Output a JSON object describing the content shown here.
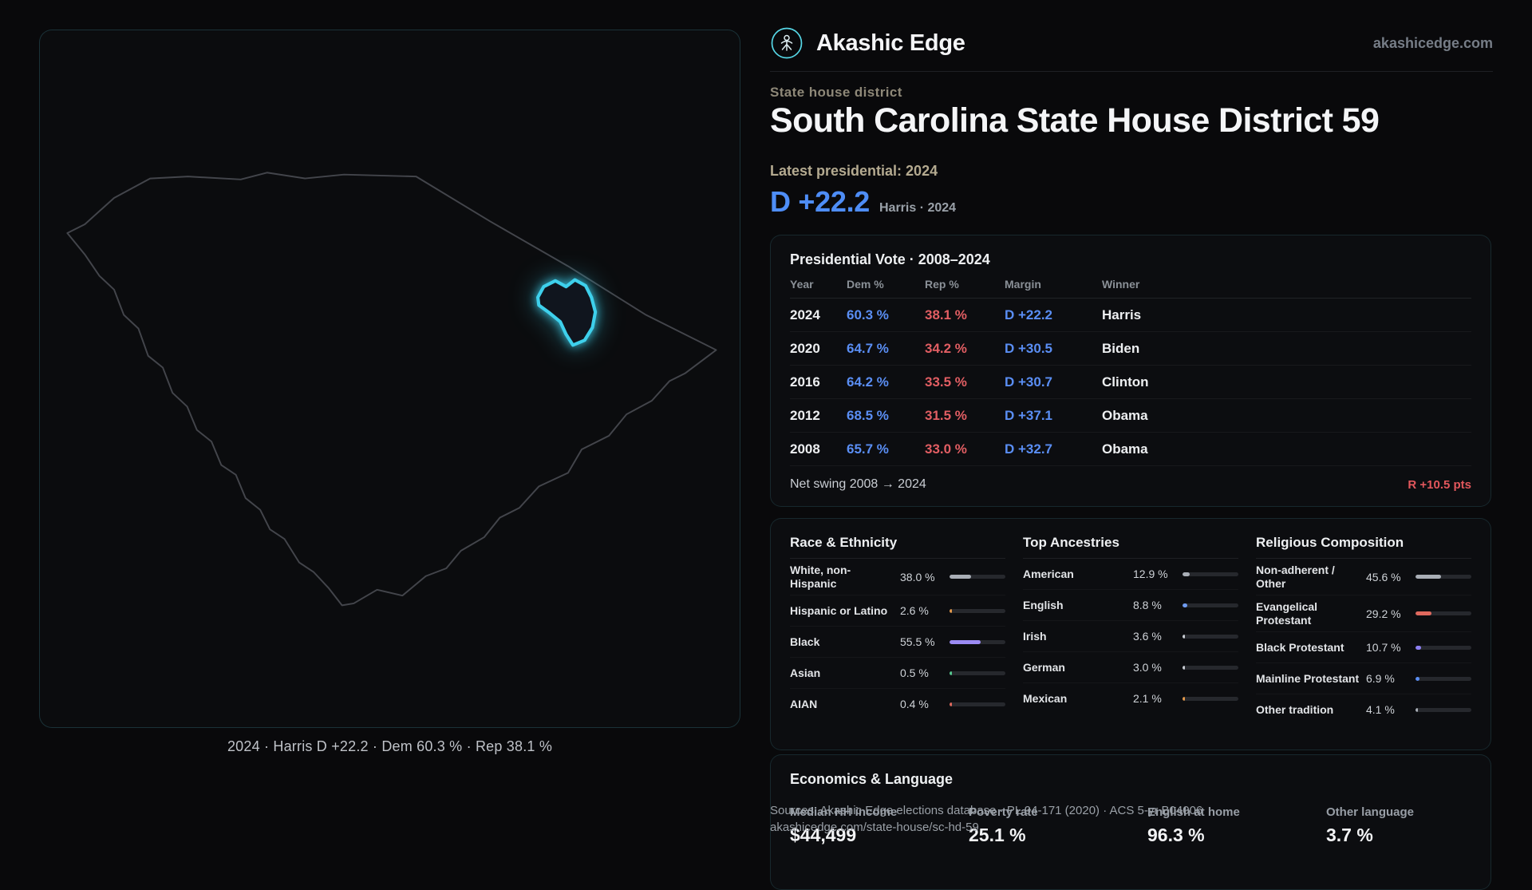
{
  "brand": {
    "name": "Akashic Edge",
    "domain": "akashicedge.com"
  },
  "page": {
    "kicker": "State house district",
    "title": "South Carolina State House District 59",
    "latest_label": "Latest presidential: 2024",
    "headline_margin": "D +22.2",
    "headline_sub": "Harris · 2024",
    "map_caption": "2024 · Harris D +22.2 · Dem 60.3 % · Rep 38.1 %"
  },
  "colors": {
    "dem": "#5a8ef4",
    "rep": "#e2575c",
    "accent": "#3ed0ec"
  },
  "presidential_vote": {
    "title": "Presidential Vote · 2008–2024",
    "columns": [
      "Year",
      "Dem %",
      "Rep %",
      "Margin",
      "Winner"
    ],
    "rows": [
      {
        "year": "2024",
        "dem": "60.3 %",
        "rep": "38.1 %",
        "margin": "D +22.2",
        "winner": "Harris"
      },
      {
        "year": "2020",
        "dem": "64.7 %",
        "rep": "34.2 %",
        "margin": "D +30.5",
        "winner": "Biden"
      },
      {
        "year": "2016",
        "dem": "64.2 %",
        "rep": "33.5 %",
        "margin": "D +30.7",
        "winner": "Clinton"
      },
      {
        "year": "2012",
        "dem": "68.5 %",
        "rep": "31.5 %",
        "margin": "D +37.1",
        "winner": "Obama"
      },
      {
        "year": "2008",
        "dem": "65.7 %",
        "rep": "33.0 %",
        "margin": "D +32.7",
        "winner": "Obama"
      }
    ],
    "net_swing_label": "Net swing 2008 → 2024",
    "net_swing_value": "R +10.5 pts"
  },
  "race_ethnicity": {
    "title": "Race & Ethnicity",
    "rows": [
      {
        "label": "White, non-Hispanic",
        "value": "38.0 %",
        "pct": 38.0,
        "color": "#a9aeb6"
      },
      {
        "label": "Hispanic or Latino",
        "value": "2.6 %",
        "pct": 2.6,
        "color": "#e59a4b"
      },
      {
        "label": "Black",
        "value": "55.5 %",
        "pct": 55.5,
        "color": "#9b8bf4"
      },
      {
        "label": "Asian",
        "value": "0.5 %",
        "pct": 0.5,
        "color": "#56c98f"
      },
      {
        "label": "AIAN",
        "value": "0.4 %",
        "pct": 0.4,
        "color": "#e0685c"
      }
    ]
  },
  "ancestries": {
    "title": "Top Ancestries",
    "rows": [
      {
        "label": "American",
        "value": "12.9 %",
        "pct": 12.9,
        "color": "#a9aeb6"
      },
      {
        "label": "English",
        "value": "8.8 %",
        "pct": 8.8,
        "color": "#6f9bf0"
      },
      {
        "label": "Irish",
        "value": "3.6 %",
        "pct": 3.6,
        "color": "#c9cdd3"
      },
      {
        "label": "German",
        "value": "3.0 %",
        "pct": 3.0,
        "color": "#c9cdd3"
      },
      {
        "label": "Mexican",
        "value": "2.1 %",
        "pct": 2.1,
        "color": "#e59a4b"
      }
    ]
  },
  "religion": {
    "title": "Religious Composition",
    "rows": [
      {
        "label": "Non-adherent / Other",
        "value": "45.6 %",
        "pct": 45.6,
        "color": "#a9aeb6"
      },
      {
        "label": "Evangelical Protestant",
        "value": "29.2 %",
        "pct": 29.2,
        "color": "#e0695e"
      },
      {
        "label": "Black Protestant",
        "value": "10.7 %",
        "pct": 10.7,
        "color": "#8d7ff2"
      },
      {
        "label": "Mainline Protestant",
        "value": "6.9 %",
        "pct": 6.9,
        "color": "#5a8ef4"
      },
      {
        "label": "Other tradition",
        "value": "4.1 %",
        "pct": 4.1,
        "color": "#a9aeb6"
      }
    ]
  },
  "economics": {
    "title": "Economics & Language",
    "stats": [
      {
        "label": "Median HH income",
        "value": "$44,499"
      },
      {
        "label": "Poverty rate",
        "value": "25.1 %"
      },
      {
        "label": "English at home",
        "value": "96.3 %"
      },
      {
        "label": "Other language",
        "value": "3.7 %"
      }
    ]
  },
  "footer": {
    "sources": "Sources: Akashic Edge elections database · PL 94-171 (2020) · ACS 5-yr B04006",
    "permalink": "akashicedge.com/state-house/sc-hd-59"
  }
}
